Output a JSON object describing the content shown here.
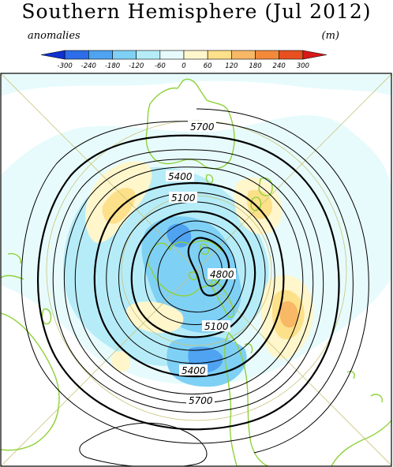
{
  "title": "Southern Hemisphere (Jul 2012)",
  "legend": {
    "left_label": "anomalies",
    "right_label": "(m)",
    "ticks": [
      "-300",
      "-240",
      "-180",
      "-120",
      "-60",
      "0",
      "60",
      "120",
      "180",
      "240",
      "300"
    ],
    "colors": [
      "#1030d0",
      "#2d6ee8",
      "#4fa3f0",
      "#7fd0f5",
      "#b6ecf8",
      "#e8fbfc",
      "#fff6cc",
      "#fde08a",
      "#f8b866",
      "#f28a3a",
      "#e85020",
      "#d81818"
    ]
  },
  "contour_labels": [
    "5700",
    "5400",
    "5100",
    "4800",
    "5100",
    "5400",
    "5700"
  ],
  "colors": {
    "coast": "#8fd13a",
    "gridline": "#c8c47a",
    "contour": "#000000"
  }
}
